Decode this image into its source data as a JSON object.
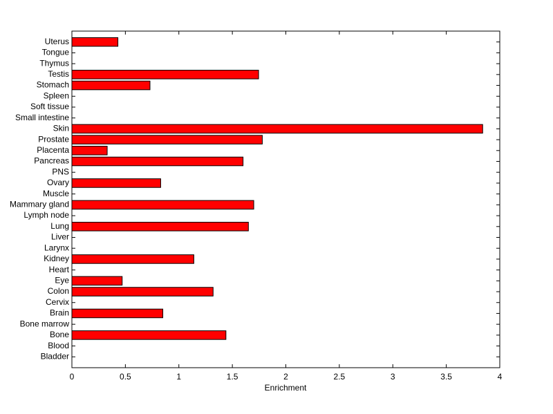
{
  "chart_data": {
    "type": "barh",
    "x_label": "Enrichment",
    "color": "#ff0000",
    "categories": [
      "Bladder",
      "Blood",
      "Bone",
      "Bone marrow",
      "Brain",
      "Cervix",
      "Colon",
      "Eye",
      "Heart",
      "Kidney",
      "Larynx",
      "Liver",
      "Lung",
      "Lymph node",
      "Mammary gland",
      "Muscle",
      "Ovary",
      "PNS",
      "Pancreas",
      "Placenta",
      "Prostate",
      "Skin",
      "Small intestine",
      "Soft tissue",
      "Spleen",
      "Stomach",
      "Testis",
      "Thymus",
      "Tongue",
      "Uterus"
    ],
    "values": [
      0,
      0,
      1.44,
      0,
      0.85,
      0,
      1.32,
      0.47,
      0,
      1.14,
      0,
      0,
      1.65,
      0,
      1.7,
      0,
      0.83,
      0,
      1.6,
      0.33,
      1.78,
      3.84,
      0,
      0,
      0,
      0.73,
      1.745,
      0,
      0,
      0.43
    ],
    "xlim": [
      0,
      4
    ],
    "xticks": [
      0,
      0.5,
      1,
      1.5,
      2,
      2.5,
      3,
      3.5,
      4
    ]
  }
}
